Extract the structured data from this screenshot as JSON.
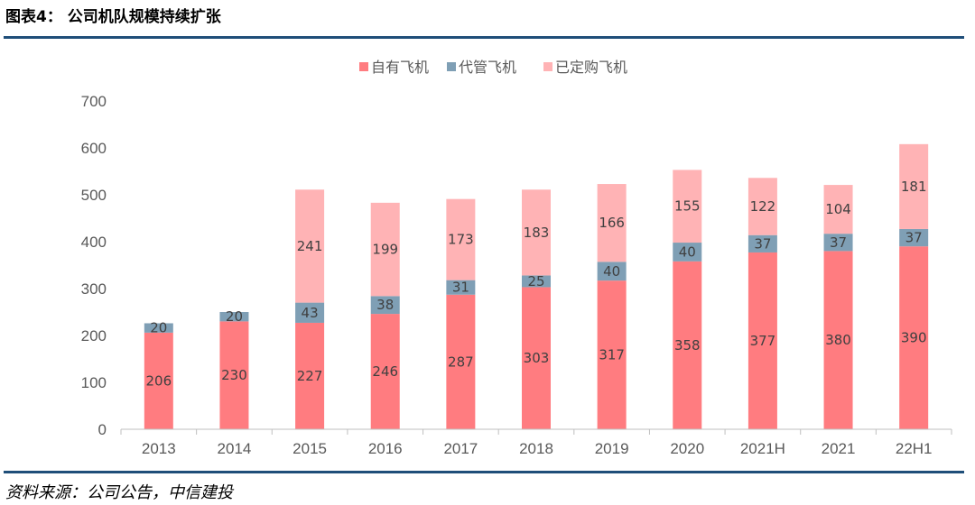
{
  "header": {
    "title": "图表4：  公司机队规模持续扩张"
  },
  "footer": {
    "source": "资料来源：公司公告，中信建投"
  },
  "chart_data": {
    "type": "bar",
    "stacked": true,
    "categories": [
      "2013",
      "2014",
      "2015",
      "2016",
      "2017",
      "2018",
      "2019",
      "2020",
      "2021H",
      "2021",
      "22H1"
    ],
    "series": [
      {
        "name": "自有飞机",
        "color": "#ff7c80",
        "values": [
          206,
          230,
          227,
          246,
          287,
          303,
          317,
          358,
          377,
          380,
          390
        ]
      },
      {
        "name": "代管飞机",
        "color": "#7f9fb5",
        "values": [
          20,
          20,
          43,
          38,
          31,
          25,
          40,
          40,
          37,
          37,
          37
        ]
      },
      {
        "name": "已定购飞机",
        "color": "#ffb3b5",
        "values": [
          null,
          null,
          241,
          199,
          173,
          183,
          166,
          155,
          122,
          104,
          181
        ]
      }
    ],
    "ylim": [
      0,
      700
    ],
    "yticks": [
      0,
      100,
      200,
      300,
      400,
      500,
      600,
      700
    ],
    "legend_position": "top-center",
    "grid": false
  }
}
